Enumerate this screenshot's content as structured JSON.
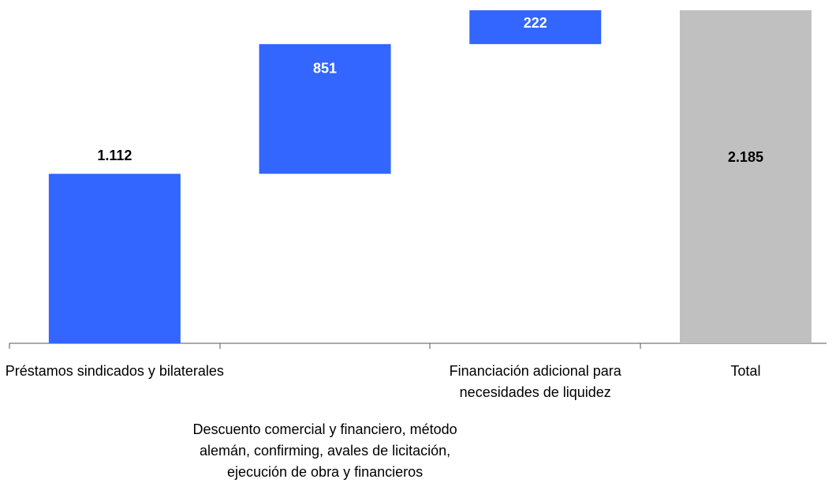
{
  "chart_data": {
    "type": "waterfall",
    "categories": [
      "Préstamos sindicados y bilaterales",
      "Descuento comercial y financiero, método alemán, confirming, avales de licitación, ejecución de obra y financieros",
      "Financiación adicional para necesidades de liquidez",
      "Total"
    ],
    "values": [
      1112,
      851,
      222,
      2185
    ],
    "value_labels": [
      "1.112",
      "851",
      "222",
      "2.185"
    ],
    "colors": [
      "#3366ff",
      "#3366ff",
      "#3366ff",
      "#c0c0c0"
    ],
    "last_is_total": true
  }
}
